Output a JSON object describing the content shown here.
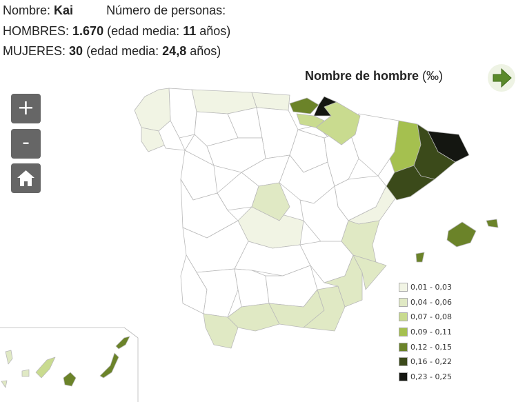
{
  "info": {
    "name_label": "Nombre:",
    "name_value": "Kai",
    "persons_label": "Número de personas:",
    "men_label": "HOMBRES:",
    "men_count": "1.670",
    "men_age_prefix": "(edad media:",
    "men_age_value": "11",
    "men_age_suffix": "años)",
    "women_label": "MUJERES:",
    "women_count": "30",
    "women_age_prefix": "(edad media:",
    "women_age_value": "24,8",
    "women_age_suffix": "años)"
  },
  "map": {
    "title": "Nombre de hombre",
    "unit": "(‰)",
    "legend": [
      {
        "label": "0,01 - 0,03",
        "color": "#f1f4e4"
      },
      {
        "label": "0,04 - 0,06",
        "color": "#e0e9c4"
      },
      {
        "label": "0,07 - 0,08",
        "color": "#c9db8f"
      },
      {
        "label": "0,09 - 0,11",
        "color": "#a5c04f"
      },
      {
        "label": "0,12 - 0,15",
        "color": "#6b8329"
      },
      {
        "label": "0,16 - 0,22",
        "color": "#3b4a1a"
      },
      {
        "label": "0,23 - 0,25",
        "color": "#141611"
      }
    ]
  },
  "controls": {
    "zoom_in": "+",
    "zoom_out": "-"
  }
}
